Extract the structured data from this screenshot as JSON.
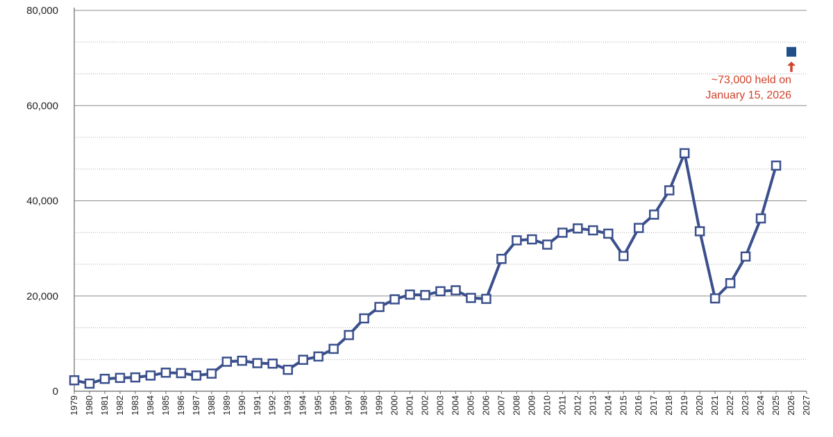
{
  "chart_data": {
    "type": "line",
    "title": "",
    "xlabel": "",
    "ylabel": "",
    "xlim": [
      1979,
      2027
    ],
    "ylim": [
      0,
      80000
    ],
    "y_ticks": [
      0,
      20000,
      40000,
      60000,
      80000
    ],
    "y_tick_labels": [
      "0",
      "20,000",
      "40,000",
      "60,000",
      "80,000"
    ],
    "y_minor_step": 6666.67,
    "x_tick_labels": [
      "1979",
      "1980",
      "1981",
      "1982",
      "1983",
      "1984",
      "1985",
      "1986",
      "1987",
      "1988",
      "1989",
      "1990",
      "1991",
      "1992",
      "1993",
      "1994",
      "1995",
      "1996",
      "1997",
      "1998",
      "1999",
      "2000",
      "2001",
      "2002",
      "2003",
      "2004",
      "2005",
      "2006",
      "2007",
      "2008",
      "2009",
      "2010",
      "2011",
      "2012",
      "2013",
      "2014",
      "2015",
      "2016",
      "2017",
      "2018",
      "2019",
      "2020",
      "2021",
      "2022",
      "2023",
      "2024",
      "2025",
      "2026",
      "2027"
    ],
    "grid": "horizontal",
    "series": [
      {
        "x": [
          1979,
          1980,
          1981,
          1982,
          1983,
          1984,
          1985,
          1986,
          1987,
          1988,
          1989,
          1990,
          1991,
          1992,
          1993,
          1994,
          1995,
          1996,
          1997,
          1998,
          1999,
          2000,
          2001,
          2002,
          2003,
          2004,
          2005,
          2006,
          2007,
          2008,
          2009,
          2010,
          2011,
          2012,
          2013,
          2014,
          2015,
          2016,
          2017,
          2018,
          2019,
          2020,
          2021,
          2022,
          2023,
          2024,
          2025
        ],
        "values": [
          2300,
          1600,
          2600,
          2800,
          2900,
          3300,
          3900,
          3800,
          3300,
          3700,
          6200,
          6400,
          5900,
          5800,
          4500,
          6600,
          7300,
          8900,
          11800,
          15300,
          17700,
          19300,
          20300,
          20200,
          21000,
          21200,
          19600,
          19400,
          27800,
          31700,
          31900,
          30800,
          33300,
          34200,
          33800,
          33100,
          28400,
          34300,
          37100,
          42200,
          50000,
          33600,
          19500,
          22700,
          28300,
          36300,
          47400
        ],
        "color": "#3a4f8c",
        "marker": "open-square"
      }
    ],
    "highlight_point": {
      "x": 2026,
      "y": 71300,
      "color": "#1f4e89",
      "marker": "filled-square"
    },
    "annotation": {
      "lines": [
        "~73,000 held on",
        "January 15, 2026"
      ],
      "color": "#d0432b",
      "arrow": "up"
    }
  }
}
